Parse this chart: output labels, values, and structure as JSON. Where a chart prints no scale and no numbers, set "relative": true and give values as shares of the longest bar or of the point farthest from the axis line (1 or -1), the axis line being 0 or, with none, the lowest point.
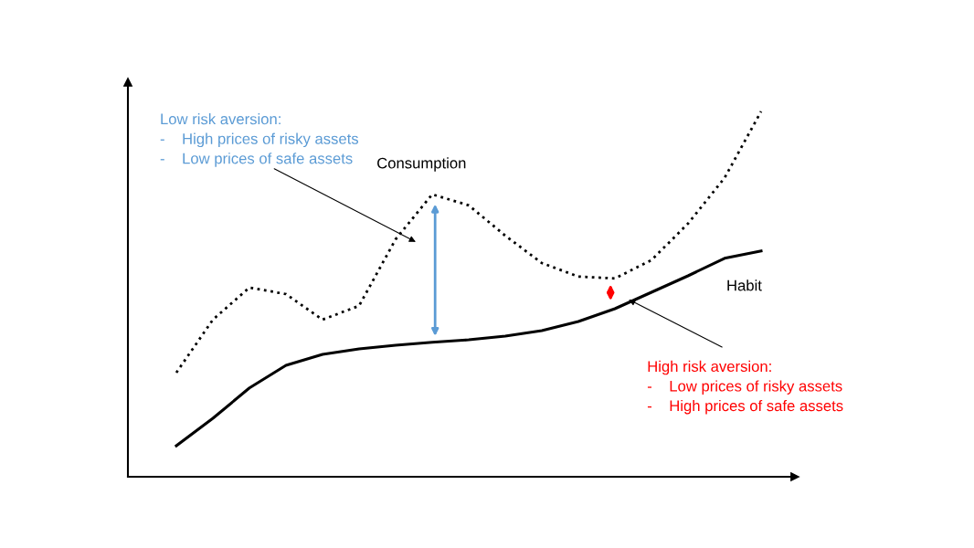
{
  "chart_data": {
    "type": "line",
    "relative": true,
    "grid": false,
    "legend": false,
    "marker": "none",
    "categories": [
      null,
      null,
      null,
      null,
      null,
      null,
      null,
      null,
      null,
      null,
      null,
      null,
      null,
      null,
      null,
      null,
      null
    ],
    "series": [
      {
        "name": "Consumption",
        "color": "#000000",
        "line_style": "dotted",
        "values": [
          0.285,
          0.43,
          0.518,
          0.5,
          0.43,
          0.468,
          0.65,
          0.773,
          0.743,
          0.66,
          0.585,
          0.548,
          0.543,
          0.593,
          0.693,
          0.818,
          1.0
        ]
      },
      {
        "name": "Habit",
        "color": "#000000",
        "line_style": "solid",
        "values": [
          0.085,
          0.16,
          0.243,
          0.305,
          0.335,
          0.35,
          0.36,
          0.368,
          0.375,
          0.385,
          0.4,
          0.425,
          0.46,
          0.505,
          0.55,
          0.598,
          0.618
        ]
      }
    ],
    "annotations": [
      "Low risk aversion:\n-    High prices of risky assets\n-    Low prices of safe assets",
      "High risk aversion:\n-    Low prices of risky assets\n-    High prices of safe assets"
    ]
  }
}
